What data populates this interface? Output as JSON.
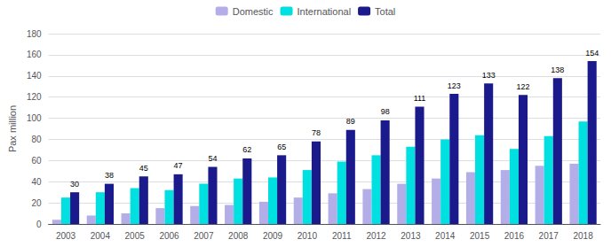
{
  "chart_data": {
    "type": "bar",
    "categories": [
      "2003",
      "2004",
      "2005",
      "2006",
      "2007",
      "2008",
      "2009",
      "2010",
      "2011",
      "2012",
      "2013",
      "2014",
      "2015",
      "2016",
      "2017",
      "2018"
    ],
    "series": [
      {
        "name": "Domestic",
        "color": "#b3aee8",
        "values": [
          4,
          8,
          10,
          15,
          17,
          18,
          21,
          25,
          29,
          33,
          38,
          43,
          49,
          51,
          55,
          57
        ]
      },
      {
        "name": "International",
        "color": "#00e0e0",
        "values": [
          25,
          30,
          34,
          32,
          38,
          43,
          44,
          51,
          59,
          65,
          73,
          80,
          84,
          71,
          83,
          97
        ]
      },
      {
        "name": "Total",
        "color": "#1a1a8c",
        "data_labels": true,
        "values": [
          30,
          38,
          45,
          47,
          54,
          62,
          65,
          78,
          89,
          98,
          111,
          123,
          133,
          122,
          138,
          154
        ]
      }
    ],
    "ylabel": "Pax million",
    "ylim": [
      0,
      180
    ],
    "yticks": [
      0,
      20,
      40,
      60,
      80,
      100,
      120,
      140,
      160,
      180
    ],
    "grid": true,
    "legend": "top"
  }
}
